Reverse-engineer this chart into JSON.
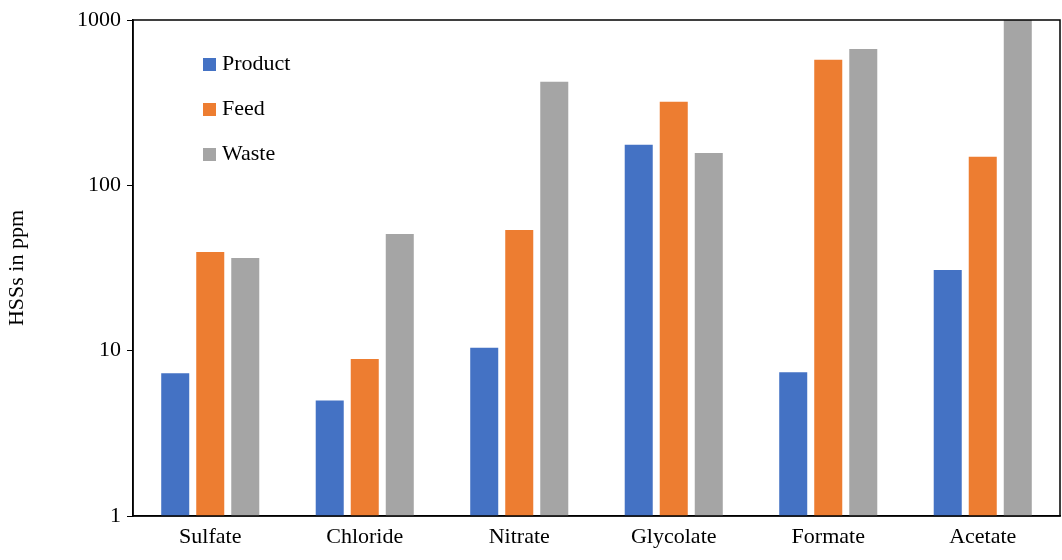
{
  "chart_data": {
    "type": "bar",
    "ylabel": "HSSs in ppm",
    "categories": [
      "Sulfate",
      "Chloride",
      "Nitrate",
      "Glycolate",
      "Formate",
      "Acetate"
    ],
    "series": [
      {
        "name": "Product",
        "color": "#4472c4",
        "values": [
          7.3,
          5.0,
          10.4,
          176,
          7.4,
          30.8
        ]
      },
      {
        "name": "Feed",
        "color": "#ed7d31",
        "values": [
          39.5,
          8.9,
          53.7,
          320,
          574,
          149
        ]
      },
      {
        "name": "Waste",
        "color": "#a5a5a5",
        "values": [
          36.4,
          50.8,
          423,
          157,
          668,
          1000
        ]
      }
    ],
    "log": "y",
    "ylim": [
      1,
      1000
    ],
    "yticks": [
      1,
      10,
      100,
      1000
    ],
    "grid": false,
    "legend": "top left"
  }
}
